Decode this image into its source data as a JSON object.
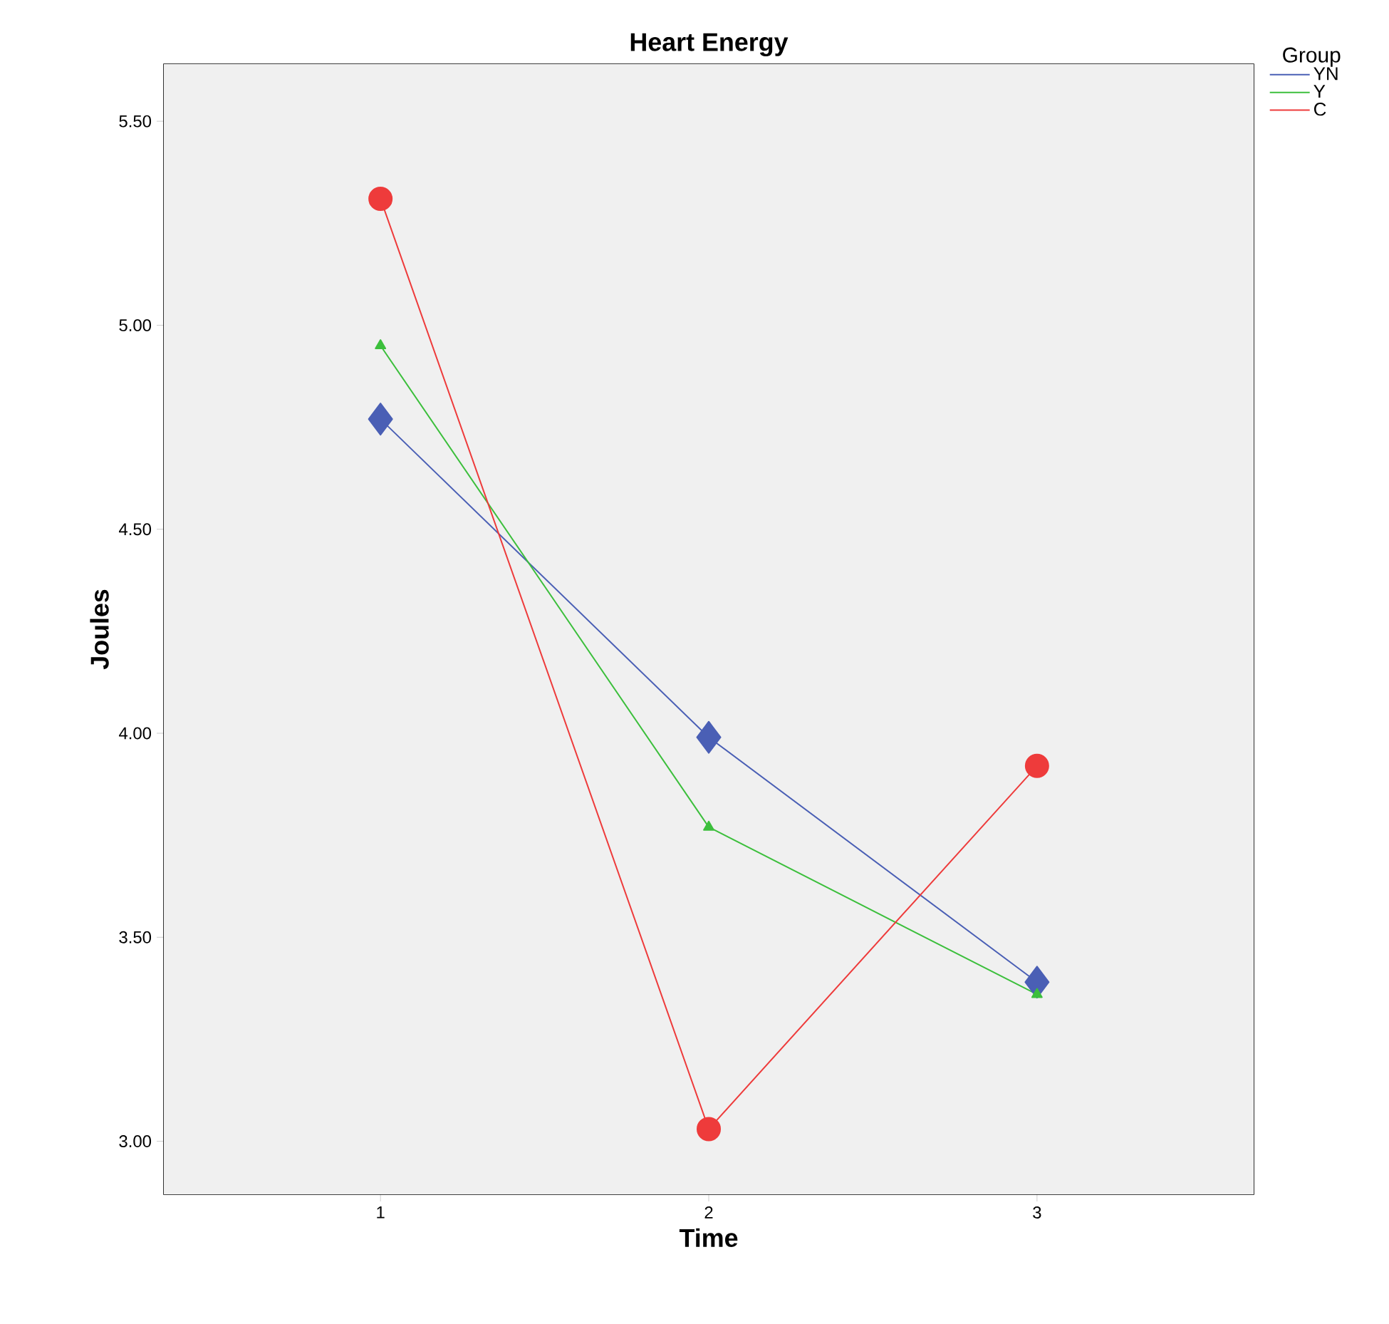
{
  "chart_data": {
    "type": "line",
    "title": "Heart Energy",
    "xlabel": "Time",
    "ylabel": "Joules",
    "legend_title": "Group",
    "legend": "top right",
    "x": [
      1,
      2,
      3
    ],
    "xlim": [
      0.34,
      3.66
    ],
    "xticks": [
      1,
      2,
      3
    ],
    "ylim": [
      2.87,
      5.64
    ],
    "yticks": [
      {
        "value": 3,
        "label": "3.00"
      },
      {
        "value": 3.5,
        "label": "3.50"
      },
      {
        "value": 4,
        "label": "4.00"
      },
      {
        "value": 4.5,
        "label": "4.50"
      },
      {
        "value": 5,
        "label": "5.00"
      },
      {
        "value": 5.5,
        "label": "5.50"
      }
    ],
    "line_style": "solid",
    "series": [
      {
        "name": "YN",
        "color": "#4a5fb5",
        "marker": "diamond",
        "values": [
          4.77,
          3.99,
          3.39
        ]
      },
      {
        "name": "Y",
        "color": "#3cbf3c",
        "marker": "triangle",
        "values": [
          4.95,
          3.77,
          3.36
        ]
      },
      {
        "name": "C",
        "color": "#ee3b3b",
        "marker": "circle",
        "values": [
          5.31,
          3.03,
          3.92
        ]
      }
    ]
  }
}
